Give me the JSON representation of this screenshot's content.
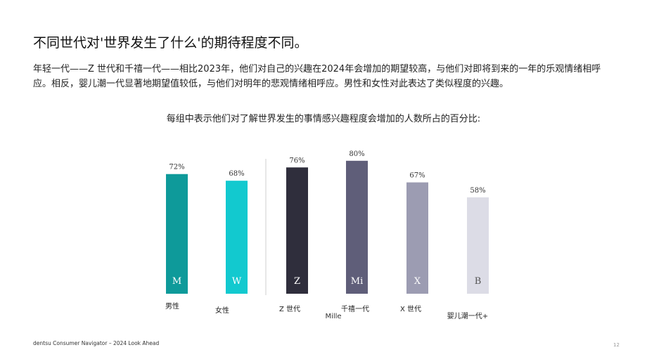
{
  "slide": {
    "title": "不同世代对'世界发生了什么'的期待程度不同。",
    "body": "年轻一代——Z 世代和千禧一代——相比2023年，他们对自己的兴趣在2024年会增加的期望较高，与他们对即将到来的一年的乐观情绪相呼应。相反，婴儿潮一代显著地期望值较低，与他们对明年的悲观情绪相呼应。男性和女性对此表达了类似程度的兴趣。",
    "chart_caption": "每组中表示他们对了解世界发生的事情感兴趣程度会增加的人数所占的百分比:",
    "footer": "dentsu Consumer Navigator – 2024 Look Ahead",
    "page_number": "12",
    "stray_label": "Mille"
  },
  "chart_data": {
    "type": "bar",
    "categories": [
      "男性",
      "女性",
      "Z 世代",
      "千禧一代",
      "X 世代",
      "婴儿潮一代+"
    ],
    "bar_letters": [
      "M",
      "W",
      "Z",
      "Mi",
      "X",
      "B"
    ],
    "values": [
      72,
      68,
      76,
      80,
      67,
      58
    ],
    "data_labels": [
      "72%",
      "68%",
      "76%",
      "80%",
      "67%",
      "58%"
    ],
    "colors": [
      "#0e9a9a",
      "#12c9cf",
      "#2f2e3c",
      "#5f5e79",
      "#9c9cb2",
      "#dcdce6"
    ],
    "letter_colors": [
      "#ffffff",
      "#ffffff",
      "#ffffff",
      "#ffffff",
      "#ffffff",
      "#555555"
    ],
    "divider_after_index": 1,
    "ylim": [
      0,
      100
    ],
    "grid": false,
    "title": "",
    "xlabel": "",
    "ylabel": ""
  }
}
